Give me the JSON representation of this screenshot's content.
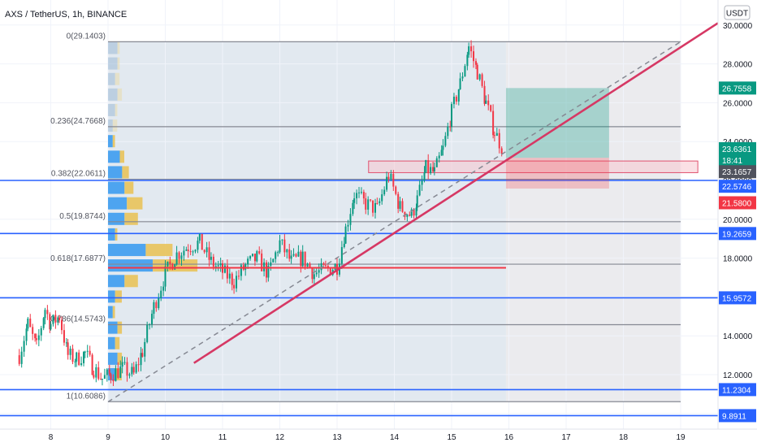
{
  "title": "AXS / TetherUS, 1h, BINANCE",
  "currency_label": "USDT",
  "chart_data": {
    "type": "candlestick",
    "symbol": "AXS / TetherUS",
    "interval": "1h",
    "exchange": "BINANCE",
    "x_ticks": [
      "8",
      "9",
      "10",
      "11",
      "12",
      "13",
      "14",
      "15",
      "16",
      "17",
      "18",
      "19"
    ],
    "y_ticks": [
      "12.0000",
      "14.0000",
      "16.0000",
      "18.0000",
      "20.0000",
      "22.0000",
      "24.0000",
      "26.0000",
      "28.0000",
      "30.0000"
    ],
    "x_range": [
      7.4,
      19.6
    ],
    "y_range": [
      9.5,
      30.8
    ],
    "fibonacci": {
      "start_day": 9,
      "end_day": 19,
      "levels": [
        {
          "label": "0(29.1403)",
          "price": 29.1403
        },
        {
          "label": "0.236(24.7668)",
          "price": 24.7668
        },
        {
          "label": "0.382(22.0611)",
          "price": 22.0611
        },
        {
          "label": "0.5(19.8744)",
          "price": 19.8744
        },
        {
          "label": "0.618(17.6877)",
          "price": 17.6877
        },
        {
          "label": "0.786(14.5743)",
          "price": 14.5743
        },
        {
          "label": "1(10.6086)",
          "price": 10.6086
        }
      ]
    },
    "horizontal_levels": [
      22.0,
      19.2659,
      15.9572,
      11.2304,
      9.8911
    ],
    "price_badges": [
      {
        "text": "26.7558",
        "price": 26.7558,
        "color": "#089981"
      },
      {
        "text": "23.6361",
        "price": 23.6361,
        "color": "#089981"
      },
      {
        "text": "18:41",
        "price": 23.05,
        "color": "#089981"
      },
      {
        "text": "23.1657",
        "price": 22.45,
        "color": "#50535e"
      },
      {
        "text": "22.5746",
        "price": 21.7,
        "color": "#2962ff"
      },
      {
        "text": "21.5800",
        "price": 20.85,
        "color": "#f23645"
      },
      {
        "text": "19.2659",
        "price": 19.2659,
        "color": "#2962ff"
      },
      {
        "text": "15.9572",
        "price": 15.9572,
        "color": "#2962ff"
      },
      {
        "text": "11.2304",
        "price": 11.2304,
        "color": "#2962ff"
      },
      {
        "text": "9.8911",
        "price": 9.8911,
        "color": "#2962ff"
      }
    ],
    "trendline": {
      "from": [
        10.5,
        12.6
      ],
      "to": [
        19.65,
        30.1
      ]
    },
    "projection_line": {
      "from": [
        9.0,
        10.6
      ],
      "to": [
        19.0,
        29.14
      ]
    },
    "position": {
      "start_day": 15.95,
      "end_day": 17.75,
      "entry": 23.1657,
      "target": 26.7558,
      "stop": 21.58
    },
    "supply_zone": {
      "start_day": 13.55,
      "end_day": 19.3,
      "top": 23.0,
      "bottom": 22.4
    },
    "poc_line": {
      "start_day": 9.0,
      "end_day": 15.95,
      "price": 17.5
    },
    "volume_profile": [
      {
        "price": 28.8,
        "blue": 0.2,
        "yellow": 0.05
      },
      {
        "price": 28.0,
        "blue": 0.2,
        "yellow": 0.05
      },
      {
        "price": 27.2,
        "blue": 0.15,
        "yellow": 0.1
      },
      {
        "price": 26.4,
        "blue": 0.2,
        "yellow": 0.1
      },
      {
        "price": 25.6,
        "blue": 0.15,
        "yellow": 0.05
      },
      {
        "price": 24.8,
        "blue": 0.1,
        "yellow": 0.1
      },
      {
        "price": 24.0,
        "blue": 0.1,
        "yellow": 0.05
      },
      {
        "price": 23.2,
        "blue": 0.25,
        "yellow": 0.1
      },
      {
        "price": 22.4,
        "blue": 0.3,
        "yellow": 0.15
      },
      {
        "price": 21.6,
        "blue": 0.35,
        "yellow": 0.2
      },
      {
        "price": 20.8,
        "blue": 0.4,
        "yellow": 0.35
      },
      {
        "price": 20.0,
        "blue": 0.35,
        "yellow": 0.3
      },
      {
        "price": 19.2,
        "blue": 0.15,
        "yellow": 0.05
      },
      {
        "price": 18.4,
        "blue": 0.8,
        "yellow": 0.6
      },
      {
        "price": 17.6,
        "blue": 0.95,
        "yellow": 1.0
      },
      {
        "price": 16.8,
        "blue": 0.35,
        "yellow": 0.3
      },
      {
        "price": 16.0,
        "blue": 0.15,
        "yellow": 0.15
      },
      {
        "price": 15.2,
        "blue": 0.1,
        "yellow": 0.05
      },
      {
        "price": 14.4,
        "blue": 0.2,
        "yellow": 0.1
      },
      {
        "price": 13.6,
        "blue": 0.15,
        "yellow": 0.1
      },
      {
        "price": 12.8,
        "blue": 0.2,
        "yellow": 0.1
      },
      {
        "price": 12.0,
        "blue": 0.15,
        "yellow": 0.15
      }
    ],
    "price_path": [
      [
        7.45,
        13.0
      ],
      [
        7.6,
        14.6
      ],
      [
        7.75,
        13.4
      ],
      [
        7.9,
        15.4
      ],
      [
        8.0,
        14.6
      ],
      [
        8.15,
        15.0
      ],
      [
        8.3,
        13.0
      ],
      [
        8.45,
        12.8
      ],
      [
        8.6,
        13.1
      ],
      [
        8.75,
        12.3
      ],
      [
        8.9,
        11.8
      ],
      [
        9.05,
        12.0
      ],
      [
        9.25,
        12.3
      ],
      [
        9.45,
        12.0
      ],
      [
        9.6,
        13.2
      ],
      [
        9.8,
        15.5
      ],
      [
        10.0,
        17.2
      ],
      [
        10.2,
        18.2
      ],
      [
        10.4,
        18.6
      ],
      [
        10.6,
        18.8
      ],
      [
        10.8,
        17.8
      ],
      [
        11.0,
        17.3
      ],
      [
        11.2,
        16.8
      ],
      [
        11.4,
        17.6
      ],
      [
        11.6,
        18.0
      ],
      [
        11.8,
        17.2
      ],
      [
        12.0,
        18.8
      ],
      [
        12.2,
        17.8
      ],
      [
        12.4,
        18.0
      ],
      [
        12.6,
        17.2
      ],
      [
        12.8,
        17.4
      ],
      [
        13.0,
        17.6
      ],
      [
        13.15,
        19.5
      ],
      [
        13.3,
        21.3
      ],
      [
        13.5,
        20.8
      ],
      [
        13.7,
        20.5
      ],
      [
        13.9,
        22.3
      ],
      [
        14.1,
        20.6
      ],
      [
        14.3,
        20.2
      ],
      [
        14.4,
        21.0
      ],
      [
        14.55,
        22.6
      ],
      [
        14.7,
        22.4
      ],
      [
        14.85,
        23.6
      ],
      [
        15.0,
        25.5
      ],
      [
        15.15,
        27.0
      ],
      [
        15.3,
        28.9
      ],
      [
        15.45,
        27.6
      ],
      [
        15.6,
        26.0
      ],
      [
        15.75,
        24.5
      ],
      [
        15.9,
        23.6
      ]
    ]
  }
}
